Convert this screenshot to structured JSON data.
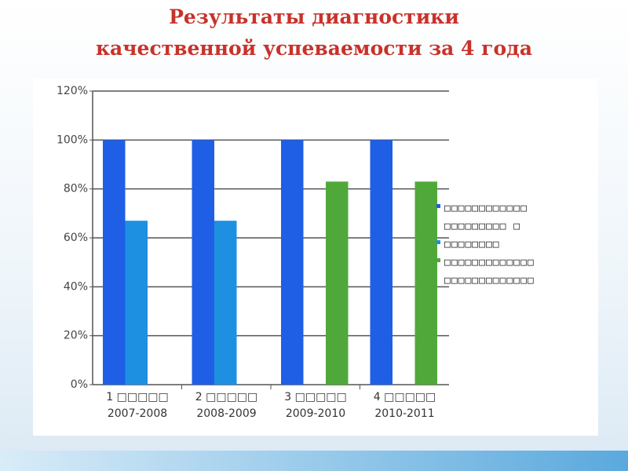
{
  "chart_data": {
    "type": "bar",
    "title": "Результаты диагностики\nкачественной успеваемости за 4 года",
    "categories": [
      "1 □□□□□\n2007-2008",
      "2 □□□□□\n2008-2009",
      "3 □□□□□\n2009-2010",
      "4 □□□□□\n2010-2011"
    ],
    "series": [
      {
        "name": "□□□□□□□□□□□□ □□□□□□□□□ □",
        "color": "#1f5fe6",
        "values": [
          100,
          100,
          100,
          100
        ]
      },
      {
        "name": "□□□□□□□□",
        "color": "#1e90e2",
        "values": [
          67,
          67,
          null,
          null
        ]
      },
      {
        "name": "□□□□□□□□□□□□□ □□□□□□□□□□□□□",
        "color": "#50a83a",
        "values": [
          null,
          null,
          83,
          83
        ]
      }
    ],
    "ylim": [
      0,
      120
    ],
    "yticks": [
      {
        "value": 0,
        "label": "0%"
      },
      {
        "value": 20,
        "label": "20%"
      },
      {
        "value": 40,
        "label": "40%"
      },
      {
        "value": 60,
        "label": "60%"
      },
      {
        "value": 80,
        "label": "80%"
      },
      {
        "value": 100,
        "label": "100%"
      },
      {
        "value": 120,
        "label": "120%"
      }
    ],
    "grid": true,
    "legend": "right"
  }
}
